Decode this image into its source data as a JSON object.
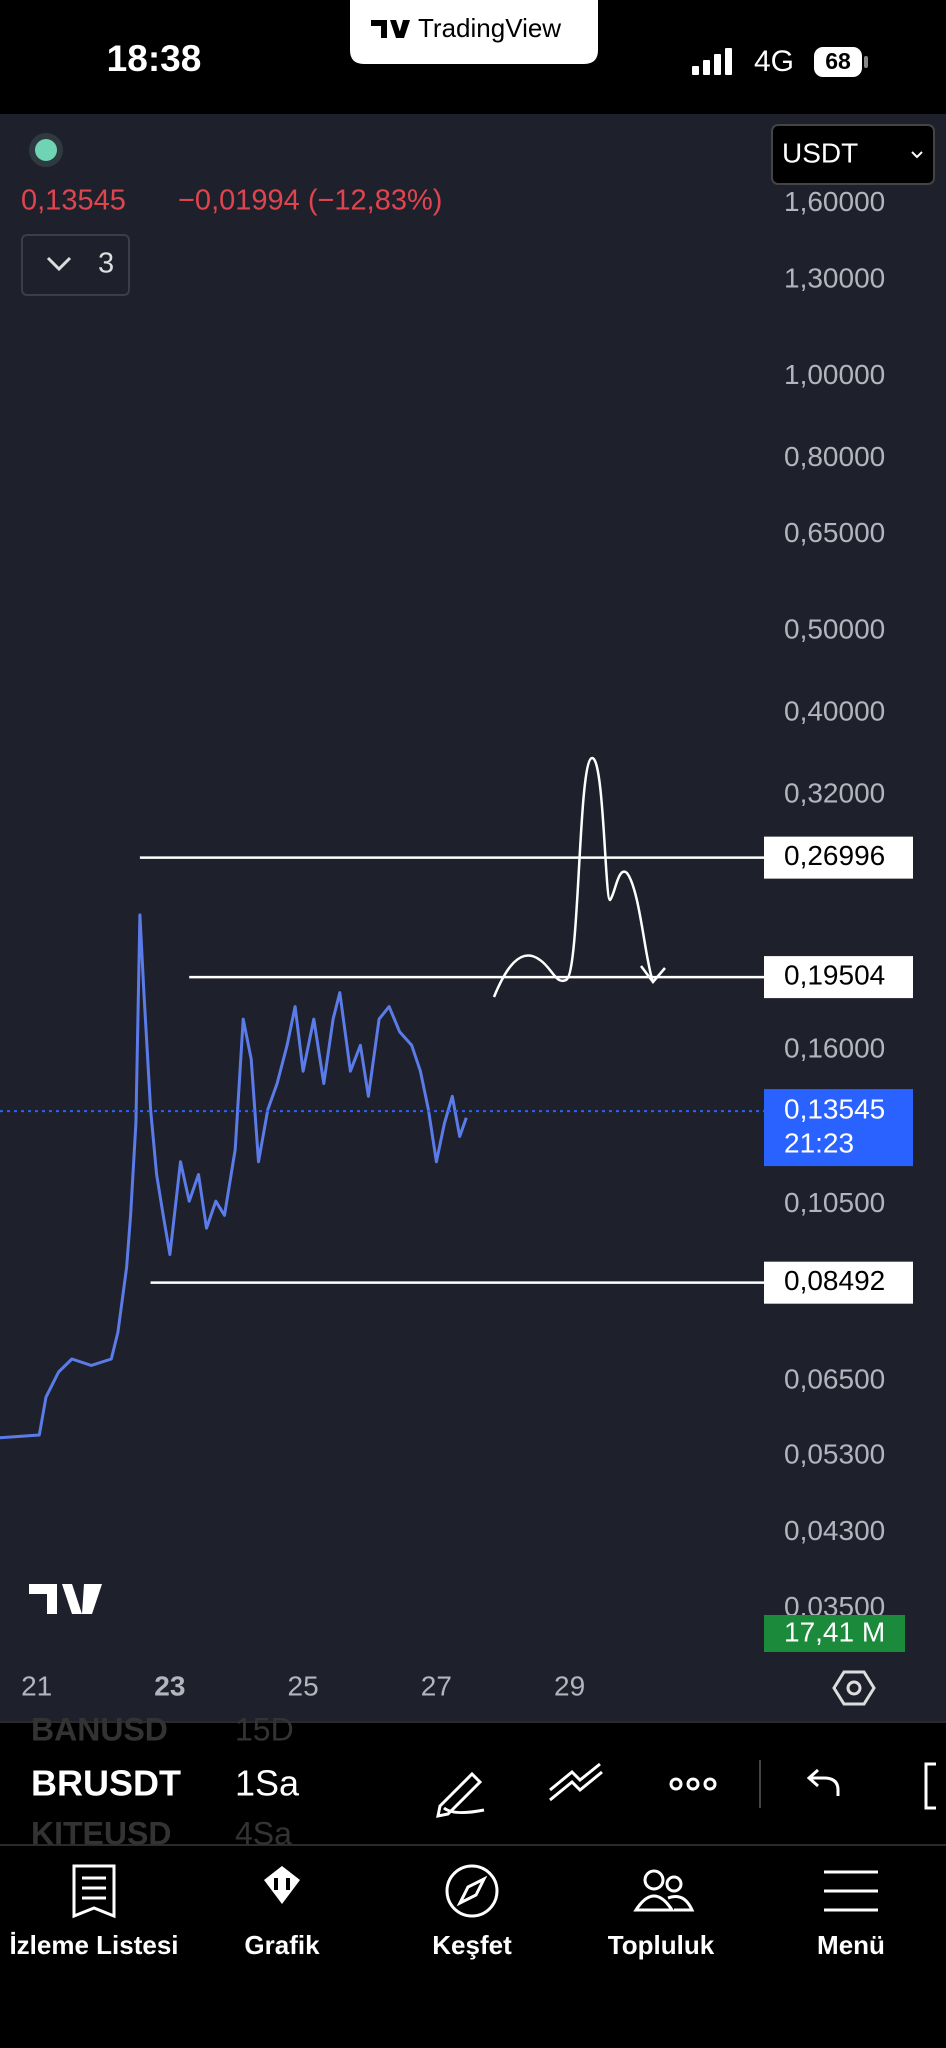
{
  "status_bar": {
    "time": "18:38",
    "brand": "TradingView",
    "network": "4G",
    "battery": "68"
  },
  "header": {
    "price": "0,13545",
    "change": "−0,01994 (−12,83%)",
    "indicator_count": "3",
    "currency": "USDT"
  },
  "chart": {
    "log_scale": true,
    "xlim": [
      20.45,
      34.65
    ],
    "ylim": [
      0.0305,
      2.02
    ],
    "xticks": [
      21,
      23,
      25,
      27,
      29
    ],
    "yticks": [
      {
        "value": 1.6,
        "label": "1,60000"
      },
      {
        "value": 1.3,
        "label": "1,30000"
      },
      {
        "value": 1.0,
        "label": "1,00000"
      },
      {
        "value": 0.8,
        "label": "0,80000"
      },
      {
        "value": 0.65,
        "label": "0,65000"
      },
      {
        "value": 0.5,
        "label": "0,50000"
      },
      {
        "value": 0.4,
        "label": "0,40000"
      },
      {
        "value": 0.32,
        "label": "0,32000"
      },
      {
        "value": 0.16,
        "label": "0,16000"
      },
      {
        "value": 0.105,
        "label": "0,10500"
      },
      {
        "value": 0.065,
        "label": "0,06500"
      },
      {
        "value": 0.053,
        "label": "0,05300"
      },
      {
        "value": 0.043,
        "label": "0,04300"
      },
      {
        "value": 0.035,
        "label": "0,03500"
      }
    ],
    "price": {
      "color": "#5b7be8",
      "x": [
        20.45,
        21.04,
        21.14,
        21.33,
        21.53,
        21.82,
        22.12,
        22.22,
        22.35,
        22.41,
        22.49,
        22.55,
        22.61,
        22.71,
        22.8,
        22.9,
        23.0,
        23.16,
        23.29,
        23.43,
        23.55,
        23.69,
        23.82,
        23.98,
        24.1,
        24.22,
        24.33,
        24.47,
        24.61,
        24.76,
        24.88,
        25.0,
        25.16,
        25.31,
        25.45,
        25.55,
        25.71,
        25.86,
        25.98,
        26.14,
        26.29,
        26.45,
        26.63,
        26.76,
        26.88,
        27.0,
        27.12,
        27.24,
        27.35,
        27.45
      ],
      "values": [
        0.0557,
        0.0561,
        0.0622,
        0.0666,
        0.069,
        0.0678,
        0.069,
        0.0742,
        0.0885,
        0.102,
        0.131,
        0.231,
        0.187,
        0.136,
        0.114,
        0.102,
        0.0917,
        0.118,
        0.106,
        0.114,
        0.0985,
        0.106,
        0.102,
        0.122,
        0.174,
        0.156,
        0.118,
        0.136,
        0.146,
        0.162,
        0.18,
        0.151,
        0.174,
        0.146,
        0.174,
        0.187,
        0.151,
        0.162,
        0.141,
        0.174,
        0.18,
        0.168,
        0.162,
        0.151,
        0.136,
        0.118,
        0.131,
        0.141,
        0.1264,
        0.133
      ]
    },
    "levels": [
      {
        "value": 0.26996,
        "label": "0,26996",
        "start": 22.55
      },
      {
        "value": 0.19504,
        "label": "0,19504",
        "start": 23.29
      },
      {
        "value": 0.08492,
        "label": "0,08492",
        "start": 22.71
      }
    ],
    "last": {
      "value": 0.13545,
      "label": "0,13545",
      "countdown": "21:23"
    },
    "volume_label": "17,41 M"
  },
  "toolbar": {
    "symbols": [
      {
        "symbol": "BANUSD",
        "interval": "15D"
      },
      {
        "symbol": "BRUSDT",
        "interval": "1Sa"
      },
      {
        "symbol": "KITEUSD",
        "interval": "4Sa"
      }
    ]
  },
  "tab_bar": {
    "tabs": [
      "İzleme Listesi",
      "Grafik",
      "Keşfet",
      "Topluluk",
      "Menü"
    ]
  }
}
